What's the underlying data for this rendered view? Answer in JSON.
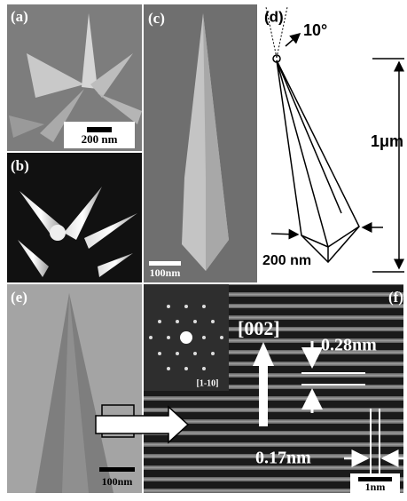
{
  "panels": [
    {
      "label": "(a)",
      "scale_bar": "200 nm"
    },
    {
      "label": "(b)"
    },
    {
      "label": "(c)",
      "scale_bar": "100nm"
    },
    {
      "label": "(d)",
      "angle": "10°",
      "length": "1μm",
      "width": "200 nm"
    },
    {
      "label": "(e)",
      "scale_bar": "100nm"
    },
    {
      "label": "(f)",
      "direction": "[002]",
      "spacing_1": "0.28nm",
      "spacing_2": "0.17nm",
      "scale_bar": "1nm",
      "inset_label": "[1-10]"
    }
  ]
}
